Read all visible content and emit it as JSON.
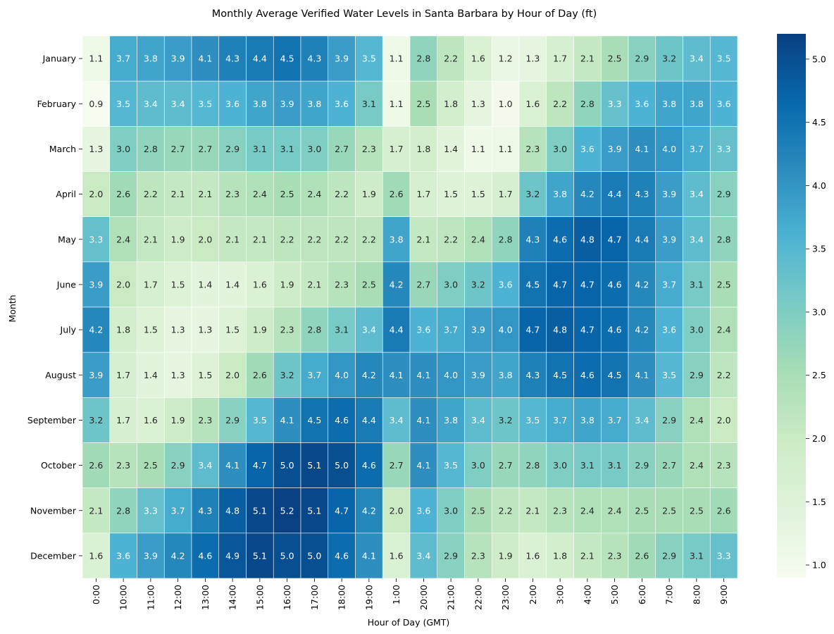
{
  "chart_data": {
    "type": "heatmap",
    "title": "Monthly Average Verified Water Levels in Santa Barbara by Hour of Day (ft)",
    "xlabel": "Hour of Day (GMT)",
    "ylabel": "Month",
    "x": [
      "0:00",
      "10:00",
      "11:00",
      "12:00",
      "13:00",
      "14:00",
      "15:00",
      "16:00",
      "17:00",
      "18:00",
      "19:00",
      "1:00",
      "20:00",
      "21:00",
      "22:00",
      "23:00",
      "2:00",
      "3:00",
      "4:00",
      "5:00",
      "6:00",
      "7:00",
      "8:00",
      "9:00"
    ],
    "y": [
      "January",
      "February",
      "March",
      "April",
      "May",
      "June",
      "July",
      "August",
      "September",
      "October",
      "November",
      "December"
    ],
    "values": [
      [
        1.1,
        3.7,
        3.8,
        3.9,
        4.1,
        4.3,
        4.4,
        4.5,
        4.3,
        3.9,
        3.5,
        1.1,
        2.8,
        2.2,
        1.6,
        1.2,
        1.3,
        1.7,
        2.1,
        2.5,
        2.9,
        3.2,
        3.4,
        3.5
      ],
      [
        0.9,
        3.5,
        3.4,
        3.4,
        3.5,
        3.6,
        3.8,
        3.9,
        3.8,
        3.6,
        3.1,
        1.1,
        2.5,
        1.8,
        1.3,
        1.0,
        1.6,
        2.2,
        2.8,
        3.3,
        3.6,
        3.8,
        3.8,
        3.6
      ],
      [
        1.3,
        3.0,
        2.8,
        2.7,
        2.7,
        2.9,
        3.1,
        3.1,
        3.0,
        2.7,
        2.3,
        1.7,
        1.8,
        1.4,
        1.1,
        1.1,
        2.3,
        3.0,
        3.6,
        3.9,
        4.1,
        4.0,
        3.7,
        3.3
      ],
      [
        2.0,
        2.6,
        2.2,
        2.1,
        2.1,
        2.3,
        2.4,
        2.5,
        2.4,
        2.2,
        1.9,
        2.6,
        1.7,
        1.5,
        1.5,
        1.7,
        3.2,
        3.8,
        4.2,
        4.4,
        4.3,
        3.9,
        3.4,
        2.9
      ],
      [
        3.3,
        2.4,
        2.1,
        1.9,
        2.0,
        2.1,
        2.1,
        2.2,
        2.2,
        2.2,
        2.2,
        3.8,
        2.1,
        2.2,
        2.4,
        2.8,
        4.3,
        4.6,
        4.8,
        4.7,
        4.4,
        3.9,
        3.4,
        2.8
      ],
      [
        3.9,
        2.0,
        1.7,
        1.5,
        1.4,
        1.4,
        1.6,
        1.9,
        2.1,
        2.3,
        2.5,
        4.2,
        2.7,
        3.0,
        3.2,
        3.6,
        4.5,
        4.7,
        4.7,
        4.6,
        4.2,
        3.7,
        3.1,
        2.5
      ],
      [
        4.2,
        1.8,
        1.5,
        1.3,
        1.3,
        1.5,
        1.9,
        2.3,
        2.8,
        3.1,
        3.4,
        4.4,
        3.6,
        3.7,
        3.9,
        4.0,
        4.7,
        4.8,
        4.7,
        4.6,
        4.2,
        3.6,
        3.0,
        2.4
      ],
      [
        3.9,
        1.7,
        1.4,
        1.3,
        1.5,
        2.0,
        2.6,
        3.2,
        3.7,
        4.0,
        4.2,
        4.1,
        4.1,
        4.0,
        3.9,
        3.8,
        4.3,
        4.5,
        4.6,
        4.5,
        4.1,
        3.5,
        2.9,
        2.2
      ],
      [
        3.2,
        1.7,
        1.6,
        1.9,
        2.3,
        2.9,
        3.5,
        4.1,
        4.5,
        4.6,
        4.4,
        3.4,
        4.1,
        3.8,
        3.4,
        3.2,
        3.5,
        3.7,
        3.8,
        3.7,
        3.4,
        2.9,
        2.4,
        2.0
      ],
      [
        2.6,
        2.3,
        2.5,
        2.9,
        3.4,
        4.1,
        4.7,
        5.0,
        5.1,
        5.0,
        4.6,
        2.7,
        4.1,
        3.5,
        3.0,
        2.7,
        2.8,
        3.0,
        3.1,
        3.1,
        2.9,
        2.7,
        2.4,
        2.3
      ],
      [
        2.1,
        2.8,
        3.3,
        3.7,
        4.3,
        4.8,
        5.1,
        5.2,
        5.1,
        4.7,
        4.2,
        2.0,
        3.6,
        3.0,
        2.5,
        2.2,
        2.1,
        2.3,
        2.4,
        2.4,
        2.5,
        2.5,
        2.5,
        2.6
      ],
      [
        1.6,
        3.6,
        3.9,
        4.2,
        4.6,
        4.9,
        5.1,
        5.0,
        5.0,
        4.6,
        4.1,
        1.6,
        3.4,
        2.9,
        2.3,
        1.9,
        1.6,
        1.8,
        2.1,
        2.3,
        2.6,
        2.9,
        3.1,
        3.3
      ]
    ],
    "colorbar": {
      "colormap": "GnBu",
      "range": [
        0.9,
        5.2
      ],
      "ticks": [
        1.0,
        1.5,
        2.0,
        2.5,
        3.0,
        3.5,
        4.0,
        4.5,
        5.0
      ],
      "tick_labels": [
        "1.0",
        "1.5",
        "2.0",
        "2.5",
        "3.0",
        "3.5",
        "4.0",
        "4.5",
        "5.0"
      ]
    },
    "annotations": "cell values shown with one decimal",
    "grid": false,
    "legend": "colorbar-right"
  }
}
